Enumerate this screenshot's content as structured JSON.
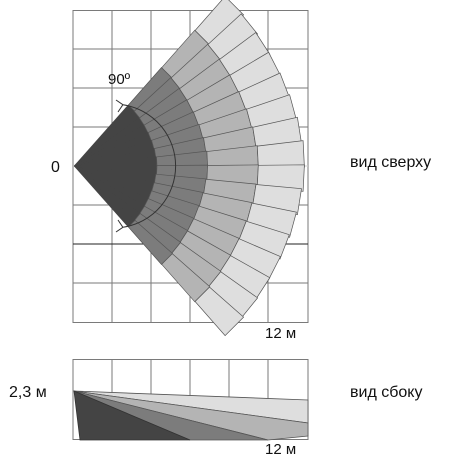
{
  "top_view": {
    "origin_label": "0",
    "angle_label": "90º",
    "distance_label": "12 м",
    "view_label": "вид сверху"
  },
  "side_view": {
    "height_label": "2,3 м",
    "distance_label": "12 м",
    "view_label": "вид сбоку"
  },
  "colors": {
    "grid": "#7a7a7a",
    "segment_dark": "#444444",
    "segment_mid": "#7c7c7c",
    "segment_light": "#b4b4b4",
    "segment_pale": "#dedede",
    "outline": "#555555"
  }
}
